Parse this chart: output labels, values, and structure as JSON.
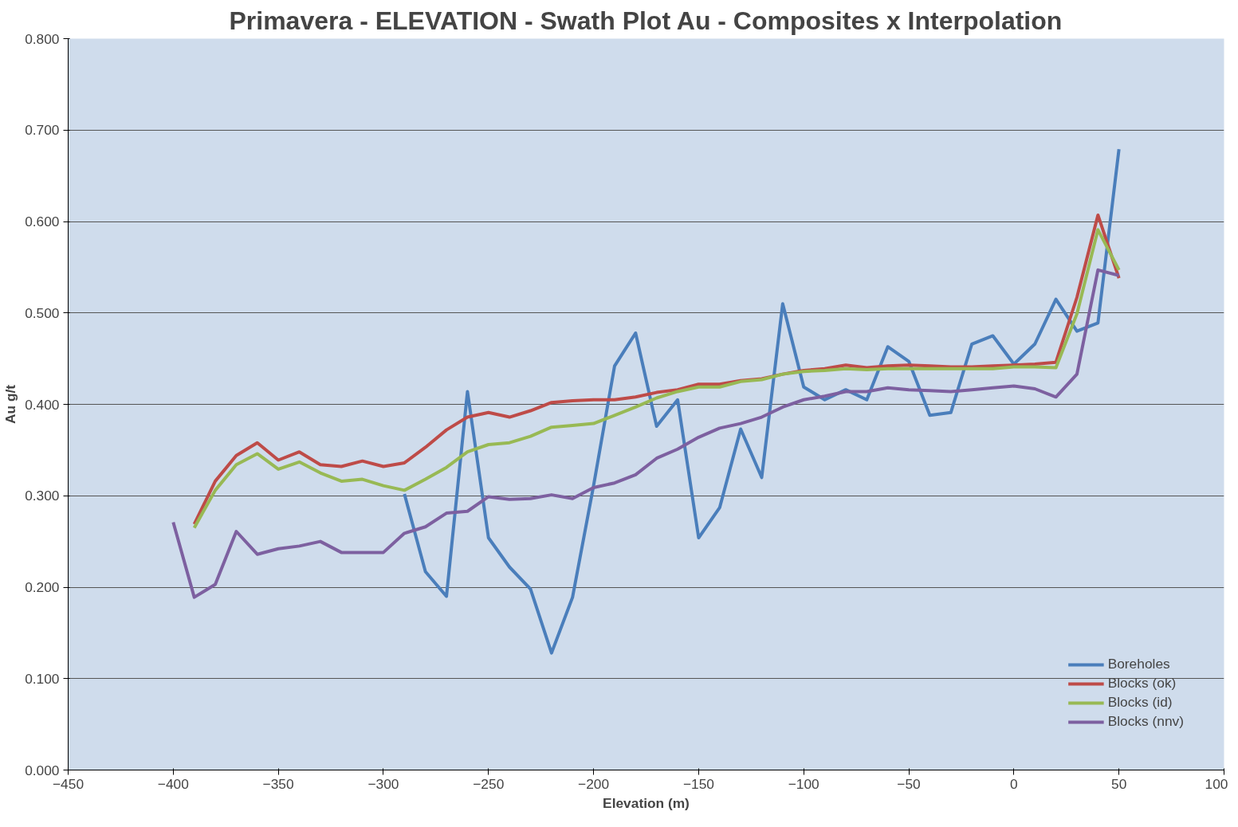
{
  "chart_data": {
    "type": "line",
    "title": "Primavera - ELEVATION - Swath Plot Au - Composites x Interpolation",
    "xlabel": "Elevation (m)",
    "ylabel": "Au g/t",
    "xlim": [
      -450,
      100
    ],
    "xticks": [
      -450,
      -400,
      -350,
      -300,
      -250,
      -200,
      -150,
      -100,
      -50,
      0,
      50,
      100
    ],
    "ylim": [
      0,
      0.8
    ],
    "yticks": [
      {
        "value": 0,
        "label": "0.000"
      },
      {
        "value": 0.1,
        "label": "0.100"
      },
      {
        "value": 0.2,
        "label": "0.200"
      },
      {
        "value": 0.3,
        "label": "0.300"
      },
      {
        "value": 0.4,
        "label": "0.400"
      },
      {
        "value": 0.5,
        "label": "0.500"
      },
      {
        "value": 0.6,
        "label": "0.600"
      },
      {
        "value": 0.7,
        "label": "0.700"
      },
      {
        "value": 0.8,
        "label": "0.800"
      }
    ],
    "grid": "y",
    "legend": "bottom right",
    "line_style": "solid",
    "series": [
      {
        "name": "Boreholes",
        "color": "#4a7ebb",
        "x": [
          -290,
          -280,
          -270,
          -260,
          -250,
          -240,
          -230,
          -220,
          -210,
          -200,
          -190,
          -180,
          -170,
          -160,
          -150,
          -140,
          -130,
          -120,
          -110,
          -100,
          -90,
          -80,
          -70,
          -60,
          -50,
          -40,
          -30,
          -20,
          -10,
          0,
          10,
          20,
          30,
          40,
          50
        ],
        "values": [
          0.302,
          0.217,
          0.19,
          0.414,
          0.254,
          0.222,
          0.198,
          0.128,
          0.189,
          0.311,
          0.442,
          0.478,
          0.376,
          0.405,
          0.254,
          0.287,
          0.373,
          0.32,
          0.51,
          0.419,
          0.405,
          0.416,
          0.405,
          0.463,
          0.447,
          0.388,
          0.391,
          0.466,
          0.475,
          0.444,
          0.466,
          0.515,
          0.48,
          0.489,
          0.679
        ]
      },
      {
        "name": "Blocks (ok)",
        "color": "#be4b48",
        "x": [
          -390,
          -380,
          -370,
          -360,
          -350,
          -340,
          -330,
          -320,
          -310,
          -300,
          -290,
          -280,
          -270,
          -260,
          -250,
          -240,
          -230,
          -220,
          -210,
          -200,
          -190,
          -180,
          -170,
          -160,
          -150,
          -140,
          -130,
          -120,
          -110,
          -100,
          -90,
          -80,
          -70,
          -60,
          -50,
          -40,
          -30,
          -20,
          -10,
          0,
          10,
          20,
          30,
          40,
          50
        ],
        "values": [
          0.269,
          0.316,
          0.344,
          0.358,
          0.339,
          0.348,
          0.334,
          0.332,
          0.338,
          0.332,
          0.336,
          0.353,
          0.372,
          0.386,
          0.391,
          0.386,
          0.393,
          0.402,
          0.404,
          0.405,
          0.405,
          0.408,
          0.413,
          0.416,
          0.422,
          0.422,
          0.426,
          0.428,
          0.433,
          0.437,
          0.439,
          0.443,
          0.44,
          0.442,
          0.443,
          0.442,
          0.441,
          0.441,
          0.442,
          0.443,
          0.444,
          0.446,
          0.517,
          0.607,
          0.538
        ]
      },
      {
        "name": "Blocks (id)",
        "color": "#98b954",
        "x": [
          -390,
          -380,
          -370,
          -360,
          -350,
          -340,
          -330,
          -320,
          -310,
          -300,
          -290,
          -280,
          -270,
          -260,
          -250,
          -240,
          -230,
          -220,
          -210,
          -200,
          -190,
          -180,
          -170,
          -160,
          -150,
          -140,
          -130,
          -120,
          -110,
          -100,
          -90,
          -80,
          -70,
          -60,
          -50,
          -40,
          -30,
          -20,
          -10,
          0,
          10,
          20,
          30,
          40,
          50
        ],
        "values": [
          0.265,
          0.306,
          0.334,
          0.346,
          0.329,
          0.337,
          0.325,
          0.316,
          0.318,
          0.311,
          0.306,
          0.318,
          0.331,
          0.348,
          0.356,
          0.358,
          0.365,
          0.375,
          0.377,
          0.379,
          0.388,
          0.397,
          0.407,
          0.414,
          0.419,
          0.419,
          0.425,
          0.427,
          0.433,
          0.436,
          0.437,
          0.439,
          0.438,
          0.439,
          0.439,
          0.439,
          0.439,
          0.439,
          0.439,
          0.441,
          0.441,
          0.44,
          0.499,
          0.591,
          0.547
        ]
      },
      {
        "name": "Blocks (nnv)",
        "color": "#7d60a0",
        "x": [
          -400,
          -390,
          -380,
          -370,
          -360,
          -350,
          -340,
          -330,
          -320,
          -310,
          -300,
          -290,
          -280,
          -270,
          -260,
          -250,
          -240,
          -230,
          -220,
          -210,
          -200,
          -190,
          -180,
          -170,
          -160,
          -150,
          -140,
          -130,
          -120,
          -110,
          -100,
          -90,
          -80,
          -70,
          -60,
          -50,
          -40,
          -30,
          -20,
          -10,
          0,
          10,
          20,
          30,
          40,
          50
        ],
        "values": [
          0.271,
          0.189,
          0.203,
          0.261,
          0.236,
          0.242,
          0.245,
          0.25,
          0.238,
          0.238,
          0.238,
          0.259,
          0.266,
          0.281,
          0.283,
          0.299,
          0.296,
          0.297,
          0.301,
          0.297,
          0.309,
          0.314,
          0.323,
          0.341,
          0.351,
          0.364,
          0.374,
          0.379,
          0.386,
          0.397,
          0.405,
          0.409,
          0.414,
          0.414,
          0.418,
          0.416,
          0.415,
          0.414,
          0.416,
          0.418,
          0.42,
          0.417,
          0.408,
          0.433,
          0.547,
          0.541
        ]
      }
    ]
  }
}
